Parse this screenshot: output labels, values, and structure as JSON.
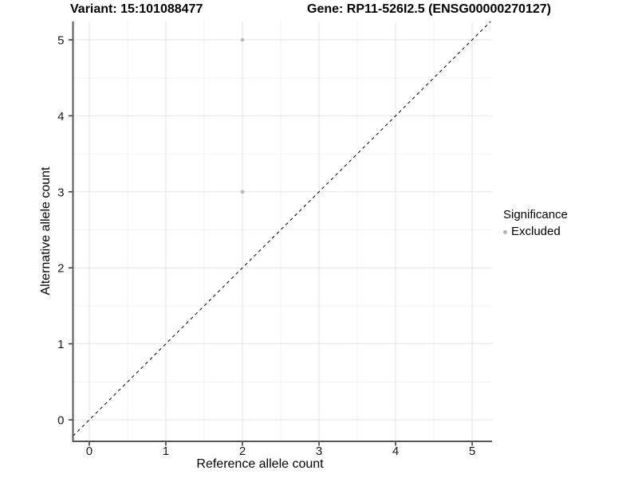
{
  "header": {
    "variant_title": "Variant: 15:101088477",
    "gene_title": "Gene: RP11-526I2.5 (ENSG00000270127)"
  },
  "chart_data": {
    "type": "scatter",
    "title_left": "Variant: 15:101088477",
    "title_right": "Gene: RP11-526I2.5 (ENSG00000270127)",
    "xlabel": "Reference allele count",
    "ylabel": "Alternative allele count",
    "xticks": [
      0,
      1,
      2,
      3,
      4,
      5
    ],
    "yticks": [
      0,
      1,
      2,
      3,
      4,
      5
    ],
    "xlim": [
      -0.213,
      5.26
    ],
    "ylim": [
      -0.283,
      5.241
    ],
    "minor_grid_step": 0.5,
    "grid": "major+minor",
    "series": [
      {
        "name": "Excluded",
        "color": "#b5b5b5",
        "points": [
          [
            2,
            5
          ],
          [
            2,
            3
          ]
        ]
      }
    ],
    "reference_line": {
      "type": "identity y=x",
      "style": "dashed",
      "color": "#000000"
    },
    "legend": {
      "title": "Significance",
      "position": "right-middle",
      "items": [
        {
          "label": "Excluded",
          "color": "#b2b2b2"
        }
      ]
    },
    "colors": {
      "background": "#ffffff",
      "grid_major": "#e3e3e3",
      "grid_minor": "#f1f1f1",
      "axis_line": "#555555",
      "tick_mark": "#333333",
      "tick_label": "#1a1a1a",
      "axis_title": "#000000",
      "point": "#b5b5b5"
    }
  }
}
